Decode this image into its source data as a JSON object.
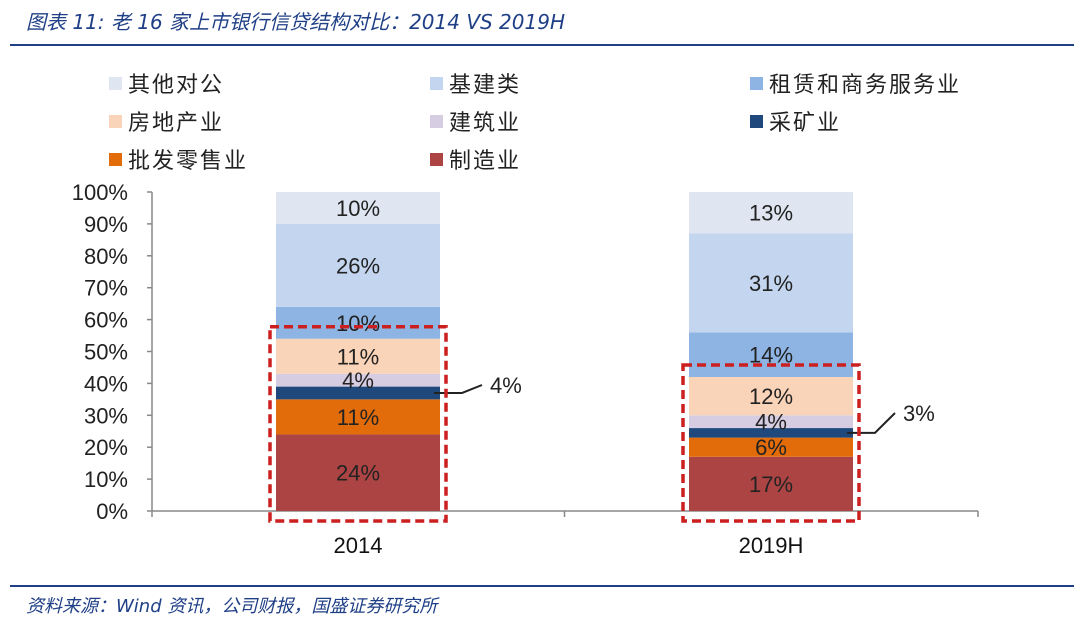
{
  "header": {
    "title": "图表 11:  老 16 家上市银行信贷结构对比：2014 VS 2019H"
  },
  "footer": {
    "source": "资料来源：Wind 资讯，公司财报，国盛证券研究所"
  },
  "colors": {
    "other_corporate": "#dfe6f1",
    "infrastructure": "#c4d6ef",
    "leasing_business": "#8db4e3",
    "real_estate": "#fad4b8",
    "construction": "#d6cde2",
    "mining": "#1f497d",
    "wholesale_retail": "#e36c0a",
    "manufacturing": "#ad4444",
    "highlight_box": "#cc1f1f",
    "rule": "#1f3f86"
  },
  "chart_data": {
    "type": "bar",
    "stacked": true,
    "percent_stacked": true,
    "categories": [
      "2014",
      "2019H"
    ],
    "series": [
      {
        "key": "manufacturing",
        "name": "制造业",
        "values": [
          24,
          17
        ],
        "labels": [
          "24%",
          "17%"
        ]
      },
      {
        "key": "wholesale_retail",
        "name": "批发零售业",
        "values": [
          11,
          6
        ],
        "labels": [
          "11%",
          "6%"
        ]
      },
      {
        "key": "mining",
        "name": "采矿业",
        "values": [
          4,
          3
        ],
        "labels": [
          "4%",
          "3%"
        ]
      },
      {
        "key": "construction",
        "name": "建筑业",
        "values": [
          4,
          4
        ],
        "labels": [
          "4%",
          "4%"
        ]
      },
      {
        "key": "real_estate",
        "name": "房地产业",
        "values": [
          11,
          12
        ],
        "labels": [
          "11%",
          "12%"
        ]
      },
      {
        "key": "leasing_business",
        "name": "租赁和商务服务业",
        "values": [
          10,
          14
        ],
        "labels": [
          "10%",
          "14%"
        ]
      },
      {
        "key": "infrastructure",
        "name": "基建类",
        "values": [
          26,
          31
        ],
        "labels": [
          "26%",
          "31%"
        ]
      },
      {
        "key": "other_corporate",
        "name": "其他对公",
        "values": [
          10,
          13
        ],
        "labels": [
          "10%",
          "13%"
        ]
      }
    ],
    "legend_order": [
      "other_corporate",
      "infrastructure",
      "leasing_business",
      "real_estate",
      "construction",
      "mining",
      "wholesale_retail",
      "manufacturing"
    ],
    "y_ticks": [
      "0%",
      "10%",
      "20%",
      "30%",
      "40%",
      "50%",
      "60%",
      "70%",
      "80%",
      "90%",
      "100%"
    ],
    "ylim": [
      0,
      100
    ],
    "highlight": "manufacturing, wholesale & retail, mining, construction and real estate outlined with red dashed box"
  }
}
